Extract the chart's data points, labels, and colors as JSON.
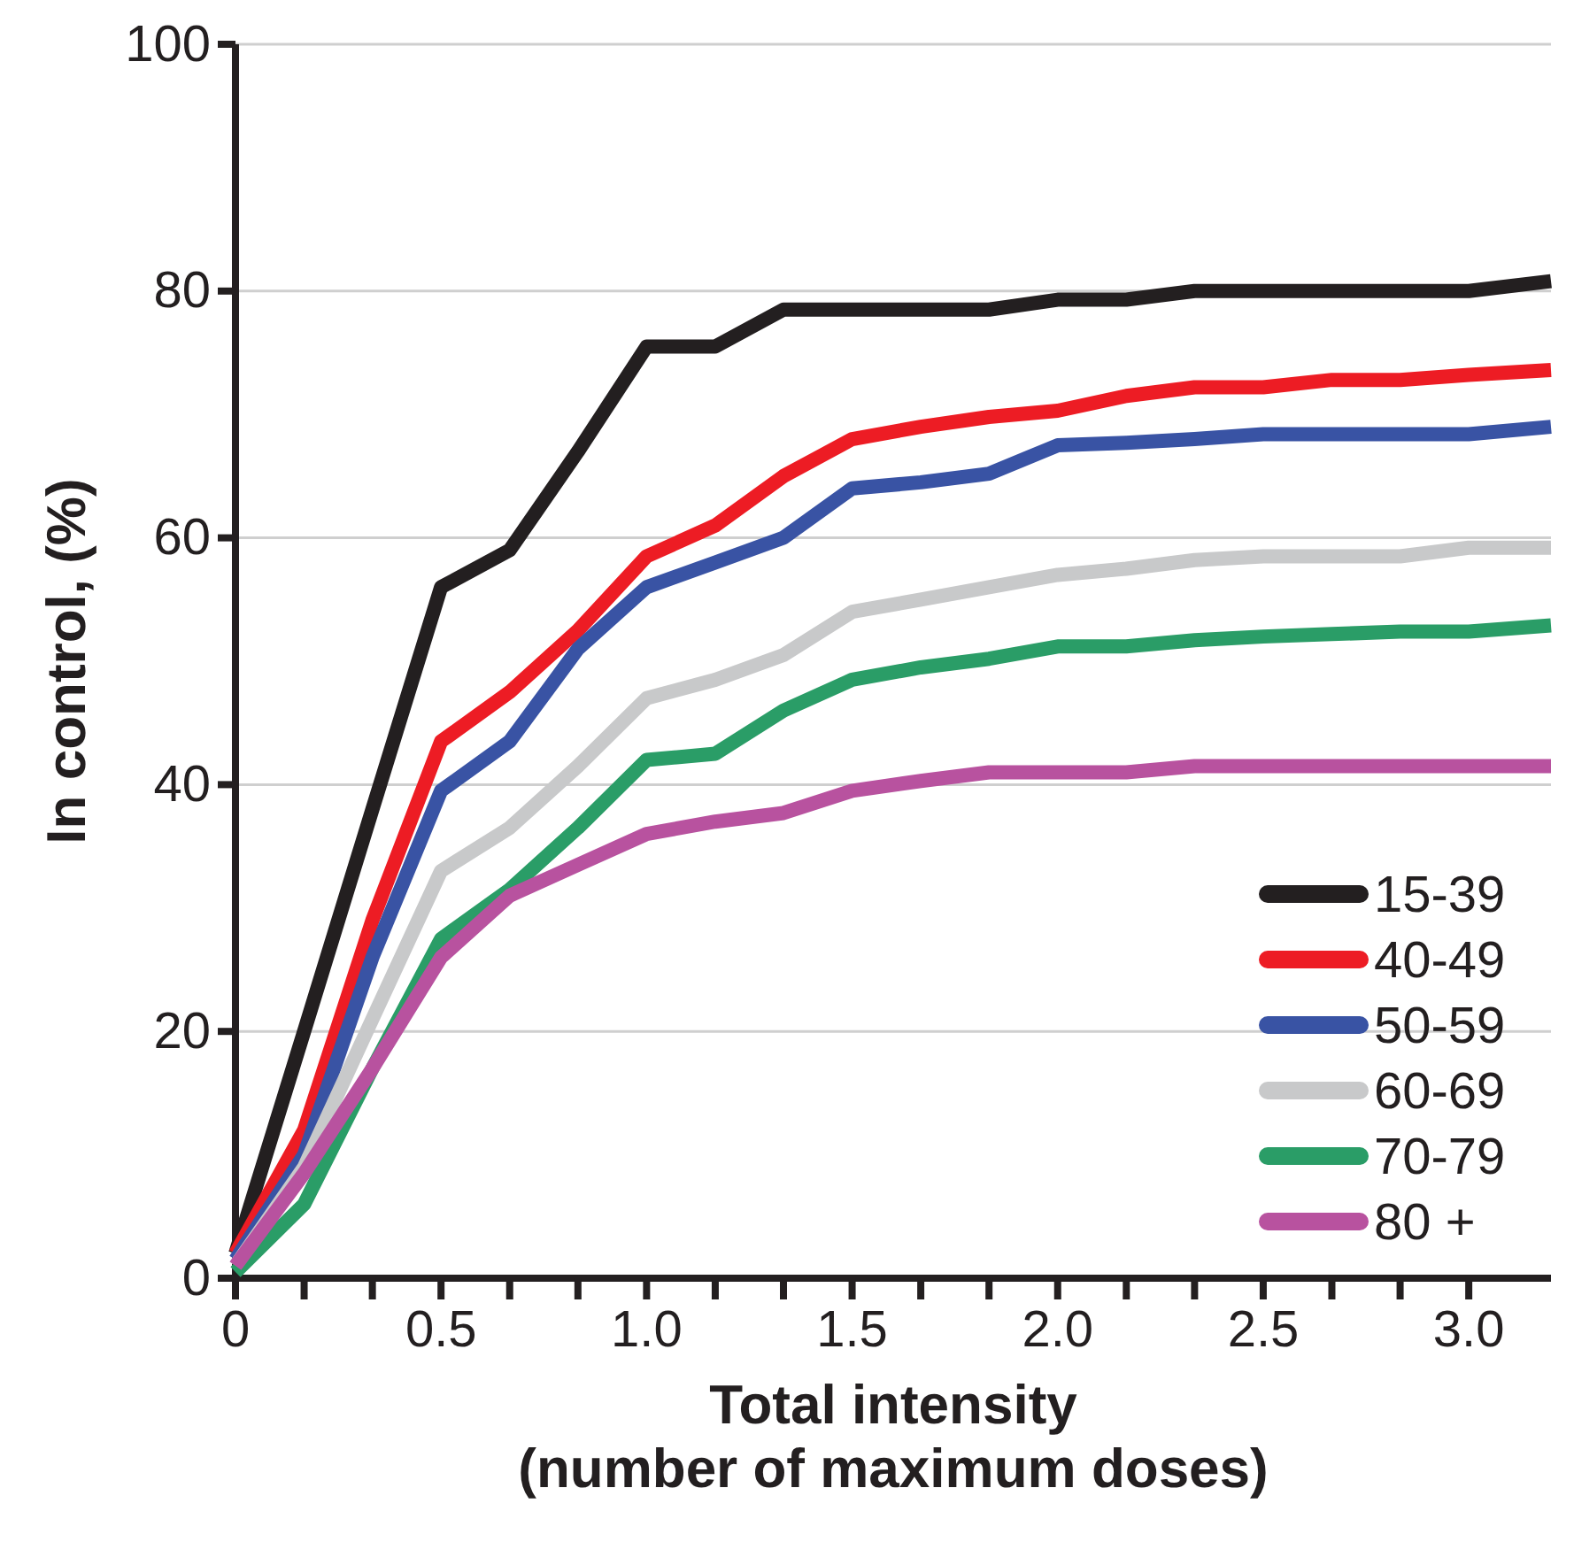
{
  "chart_data": {
    "type": "line",
    "xlabel": "Total intensity\n(number of maximum doses)",
    "ylabel": "In control, (%)",
    "x": [
      0,
      0.167,
      0.333,
      0.5,
      0.667,
      0.833,
      1,
      1.167,
      1.333,
      1.5,
      1.667,
      1.833,
      2,
      2.167,
      2.333,
      2.5,
      2.667,
      2.833,
      3,
      3.2
    ],
    "series": [
      {
        "name": "15-39",
        "color": "#231f20",
        "values": [
          2,
          20,
          38,
          56,
          59,
          67,
          75.5,
          75.5,
          78.5,
          78.5,
          78.5,
          78.5,
          79.3,
          79.3,
          80,
          80,
          80,
          80,
          80,
          80.8
        ]
      },
      {
        "name": "40-49",
        "color": "#ed1c24",
        "values": [
          2,
          12,
          29,
          43.5,
          47.5,
          52.5,
          58.5,
          61,
          65,
          68,
          69,
          69.8,
          70.3,
          71.5,
          72.2,
          72.2,
          72.8,
          72.8,
          73.2,
          73.6
        ]
      },
      {
        "name": "50-59",
        "color": "#3953a4",
        "values": [
          1.5,
          10,
          26,
          39.5,
          43.5,
          51,
          56,
          58,
          60,
          64,
          64.5,
          65.2,
          67.5,
          67.7,
          68,
          68.4,
          68.4,
          68.4,
          68.4,
          69
        ]
      },
      {
        "name": "60-69",
        "color": "#c8c9ca",
        "values": [
          1,
          9,
          21,
          33,
          36.5,
          41.5,
          47,
          48.5,
          50.5,
          54,
          55,
          56,
          57,
          57.5,
          58.2,
          58.5,
          58.5,
          58.5,
          59.2,
          59.2
        ]
      },
      {
        "name": "70-79",
        "color": "#2a9d67",
        "values": [
          0.5,
          6,
          17,
          27.5,
          31.5,
          36.5,
          42,
          42.5,
          46,
          48.5,
          49.5,
          50.2,
          51.2,
          51.2,
          51.7,
          52,
          52.2,
          52.4,
          52.4,
          52.9
        ]
      },
      {
        "name": "80 +",
        "color": "#b8529f",
        "values": [
          1,
          8.5,
          17,
          26,
          31,
          33.5,
          36,
          37,
          37.7,
          39.5,
          40.3,
          41,
          41,
          41,
          41.5,
          41.5,
          41.5,
          41.5,
          41.5,
          41.5
        ]
      }
    ],
    "xlim": [
      0,
      3.2
    ],
    "xticks": [
      0,
      {
        "value": 0.167,
        "label": null
      },
      {
        "value": 0.333,
        "label": null
      },
      0.5,
      {
        "value": 0.667,
        "label": null
      },
      {
        "value": 0.833,
        "label": null
      },
      {
        "value": 1,
        "label": "1.0"
      },
      {
        "value": 1.167,
        "label": null
      },
      {
        "value": 1.333,
        "label": null
      },
      1.5,
      {
        "value": 1.667,
        "label": null
      },
      {
        "value": 1.833,
        "label": null
      },
      {
        "value": 2,
        "label": "2.0"
      },
      {
        "value": 2.167,
        "label": null
      },
      {
        "value": 2.333,
        "label": null
      },
      2.5,
      {
        "value": 2.667,
        "label": null
      },
      {
        "value": 2.833,
        "label": null
      },
      {
        "value": 3,
        "label": "3.0"
      }
    ],
    "ylim": [
      0,
      100
    ],
    "yticks": [
      0,
      20,
      40,
      60,
      80,
      100
    ],
    "grid": "y",
    "legend": "bottom right",
    "marker": "none",
    "line_style": "solid"
  }
}
